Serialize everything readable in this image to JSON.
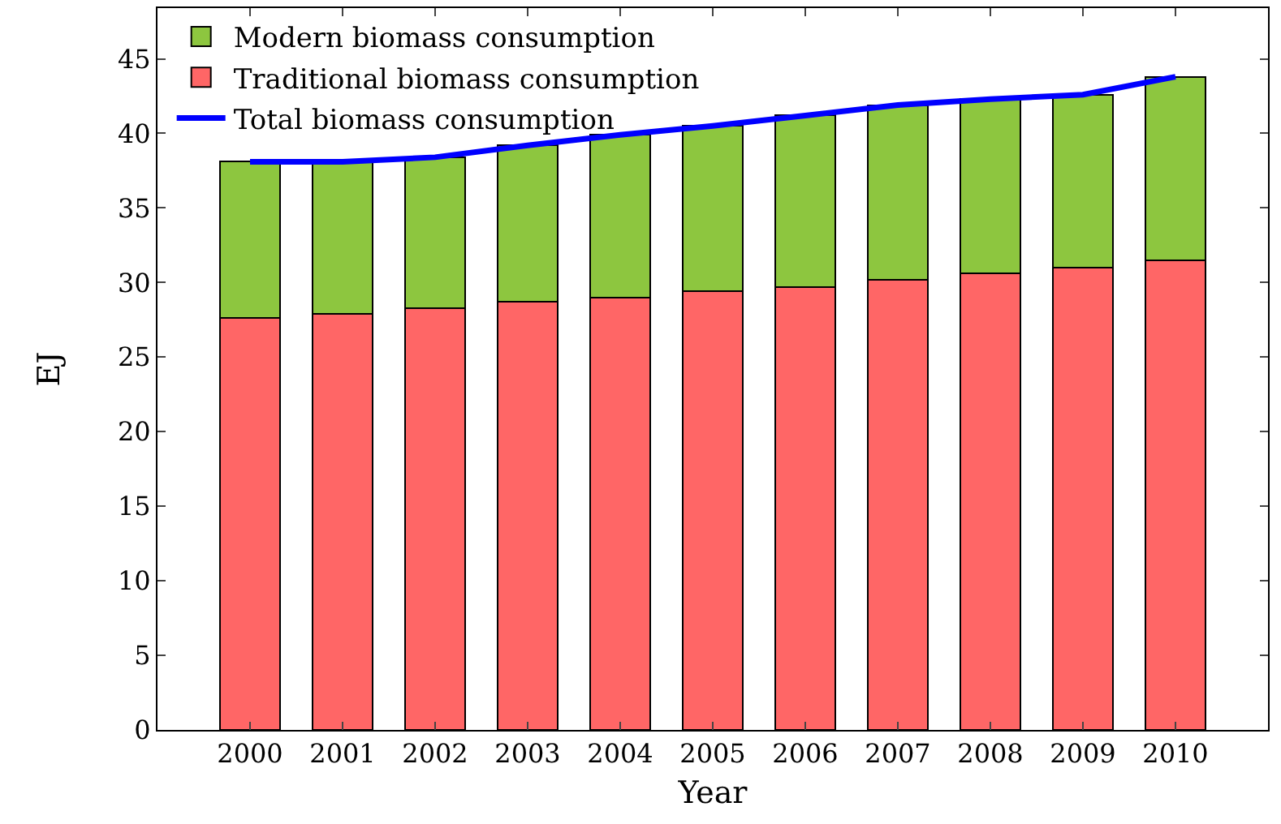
{
  "chart_data": {
    "type": "bar",
    "stacked": true,
    "xlabel": "Year",
    "ylabel": "EJ",
    "categories": [
      "2000",
      "2001",
      "2002",
      "2003",
      "2004",
      "2005",
      "2006",
      "2007",
      "2008",
      "2009",
      "2010"
    ],
    "series": [
      {
        "name": "Total biomass consumption",
        "type": "line",
        "color": "#0000ff",
        "values": [
          38.1,
          38.1,
          38.4,
          39.2,
          39.9,
          40.5,
          41.2,
          41.9,
          42.3,
          42.6,
          43.8
        ]
      },
      {
        "name": "Traditional biomass consumption",
        "color": "#ff6666",
        "values": [
          27.6,
          27.9,
          28.3,
          28.7,
          29.0,
          29.4,
          29.7,
          30.2,
          30.6,
          31.0,
          31.5
        ]
      },
      {
        "name": "Modern biomass consumption",
        "color": "#8dc63f",
        "values": [
          10.5,
          10.2,
          10.1,
          10.5,
          10.9,
          11.1,
          11.5,
          11.7,
          11.7,
          11.6,
          12.3
        ]
      }
    ],
    "ylim": [
      0,
      48.4
    ],
    "yticks": [
      0,
      5,
      10,
      15,
      20,
      25,
      30,
      35,
      40,
      45
    ],
    "grid": false,
    "legend": "top left",
    "marker": "none",
    "line_style": "solid"
  }
}
